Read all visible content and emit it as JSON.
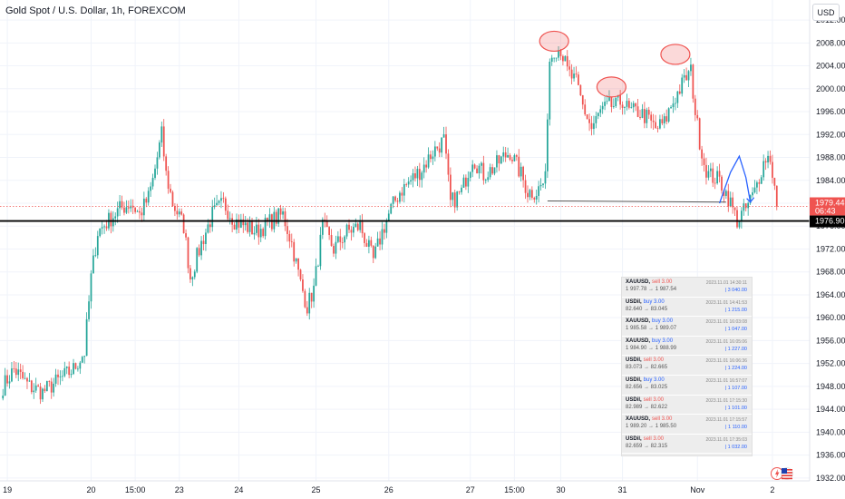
{
  "header": {
    "symbol_title": "Gold Spot / U.S. Dollar, 1h, FOREXCOM",
    "currency": "USD"
  },
  "chart_data": {
    "type": "candlestick",
    "title": "Gold Spot / U.S. Dollar, 1h, FOREXCOM",
    "ylim": [
      1931.5,
      2015.5
    ],
    "y_ticks": [
      "2012.00",
      "2008.00",
      "2004.00",
      "2000.00",
      "1996.00",
      "1992.00",
      "1988.00",
      "1984.00",
      "1980.00",
      "1976.00",
      "1972.00",
      "1968.00",
      "1964.00",
      "1960.00",
      "1956.00",
      "1952.00",
      "1948.00",
      "1944.00",
      "1940.00",
      "1936.00",
      "1932.00"
    ],
    "y_tick_values": [
      2012,
      2008,
      2004,
      2000,
      1996,
      1992,
      1988,
      1984,
      1980,
      1976,
      1972,
      1968,
      1964,
      1960,
      1956,
      1952,
      1948,
      1944,
      1940,
      1936,
      1932
    ],
    "x_ticks": [
      {
        "label": "19",
        "bar": 2
      },
      {
        "label": "20",
        "bar": 40
      },
      {
        "label": "15:00",
        "bar": 60
      },
      {
        "label": "23",
        "bar": 80
      },
      {
        "label": "24",
        "bar": 107
      },
      {
        "label": "25",
        "bar": 142
      },
      {
        "label": "26",
        "bar": 175
      },
      {
        "label": "27",
        "bar": 212
      },
      {
        "label": "15:00",
        "bar": 232
      },
      {
        "label": "30",
        "bar": 253
      },
      {
        "label": "31",
        "bar": 281
      },
      {
        "label": "Nov",
        "bar": 315
      },
      {
        "label": "2",
        "bar": 349
      }
    ],
    "bar_count": 352,
    "anchors": [
      [
        0,
        1948
      ],
      [
        5,
        1951
      ],
      [
        12,
        1948
      ],
      [
        18,
        1947
      ],
      [
        25,
        1949
      ],
      [
        32,
        1951
      ],
      [
        37,
        1954
      ],
      [
        40,
        1967
      ],
      [
        43,
        1975
      ],
      [
        48,
        1977
      ],
      [
        53,
        1979
      ],
      [
        58,
        1980
      ],
      [
        62,
        1978
      ],
      [
        66,
        1981
      ],
      [
        68,
        1984
      ],
      [
        70,
        1988
      ],
      [
        72,
        1992
      ],
      [
        74,
        1985
      ],
      [
        77,
        1980
      ],
      [
        82,
        1976
      ],
      [
        85,
        1967
      ],
      [
        90,
        1973
      ],
      [
        95,
        1978
      ],
      [
        100,
        1980
      ],
      [
        105,
        1977
      ],
      [
        110,
        1976
      ],
      [
        115,
        1975
      ],
      [
        122,
        1977
      ],
      [
        127,
        1978
      ],
      [
        131,
        1973
      ],
      [
        135,
        1966
      ],
      [
        138,
        1962
      ],
      [
        141,
        1965
      ],
      [
        145,
        1976
      ],
      [
        150,
        1972
      ],
      [
        156,
        1975
      ],
      [
        162,
        1976
      ],
      [
        168,
        1970
      ],
      [
        172,
        1975
      ],
      [
        176,
        1979
      ],
      [
        180,
        1982
      ],
      [
        185,
        1984
      ],
      [
        190,
        1986
      ],
      [
        195,
        1989
      ],
      [
        200,
        1991
      ],
      [
        203,
        1980
      ],
      [
        208,
        1982
      ],
      [
        213,
        1988
      ],
      [
        218,
        1985
      ],
      [
        222,
        1986
      ],
      [
        227,
        1988
      ],
      [
        230,
        1989
      ],
      [
        235,
        1985
      ],
      [
        238,
        1982
      ],
      [
        242,
        1982
      ],
      [
        246,
        1984
      ],
      [
        247,
        1996
      ],
      [
        248,
        2005
      ],
      [
        250,
        2007
      ],
      [
        253,
        2007
      ],
      [
        256,
        2003
      ],
      [
        260,
        2001
      ],
      [
        263,
        1997
      ],
      [
        267,
        1993
      ],
      [
        271,
        1996
      ],
      [
        275,
        1997
      ],
      [
        278,
        1997
      ],
      [
        281,
        1998
      ],
      [
        284,
        1996
      ],
      [
        288,
        1996
      ],
      [
        292,
        1995
      ],
      [
        296,
        1993
      ],
      [
        300,
        1994
      ],
      [
        303,
        1997
      ],
      [
        307,
        2000
      ],
      [
        310,
        2002
      ],
      [
        312,
        2003
      ],
      [
        314,
        1996
      ],
      [
        316,
        1991
      ],
      [
        318,
        1987
      ],
      [
        320,
        1985
      ],
      [
        325,
        1984
      ],
      [
        329,
        1981
      ],
      [
        333,
        1977
      ],
      [
        337,
        1979
      ],
      [
        341,
        1982
      ],
      [
        344,
        1986
      ],
      [
        346,
        1988
      ],
      [
        348,
        1988
      ],
      [
        351,
        1980
      ]
    ],
    "current_price": "1979.44",
    "countdown": "06:43",
    "support_level": 1976.9,
    "support_label": "1976.90",
    "neckline": {
      "from_bar": 247,
      "to_bar": 328,
      "price": 1980.4
    },
    "highlight_circles": [
      {
        "bar": 250,
        "price": 2008.3
      },
      {
        "bar": 276,
        "price": 2000.3
      },
      {
        "bar": 305,
        "price": 2006.0
      }
    ],
    "arrow_path": [
      [
        325,
        1980.0
      ],
      [
        330,
        1985.4
      ],
      [
        334,
        1988.2
      ],
      [
        337,
        1984.5
      ],
      [
        339,
        1980.2
      ]
    ],
    "colors": {
      "up": "#26a69a",
      "down": "#ef5350",
      "support": "#000000",
      "arrow": "#2962ff",
      "circle": "#ef5350",
      "neckline": "#555555"
    }
  },
  "trades": [
    {
      "symbol": "XAUUSD,",
      "side": "sell",
      "qty": "3.00",
      "from": "1 997.78",
      "to": "1 987.54",
      "time": "2023.11.01 14:30:11",
      "amount": "3 040.00"
    },
    {
      "symbol": "USDil,",
      "side": "buy",
      "qty": "3.00",
      "from": "82.640",
      "to": "83.045",
      "time": "2023.11.01 14:41:53",
      "amount": "1 215.00"
    },
    {
      "symbol": "XAUUSD,",
      "side": "buy",
      "qty": "3.00",
      "from": "1 985.58",
      "to": "1 989.07",
      "time": "2023.11.01 16:03:08",
      "amount": "1 047.00"
    },
    {
      "symbol": "XAUUSD,",
      "side": "buy",
      "qty": "3.00",
      "from": "1 984.90",
      "to": "1 988.99",
      "time": "2023.11.01 16:05:06",
      "amount": "1 227.00"
    },
    {
      "symbol": "USDil,",
      "side": "sell",
      "qty": "3.00",
      "from": "83.073",
      "to": "82.665",
      "time": "2023.11.01 16:06:36",
      "amount": "1 224.00"
    },
    {
      "symbol": "USDil,",
      "side": "buy",
      "qty": "3.00",
      "from": "82.656",
      "to": "83.025",
      "time": "2023.11.01 16:57:07",
      "amount": "1 107.00"
    },
    {
      "symbol": "USDil,",
      "side": "sell",
      "qty": "3.00",
      "from": "82.989",
      "to": "82.622",
      "time": "2023.11.01 17:15:30",
      "amount": "1 101.00"
    },
    {
      "symbol": "XAUUSD,",
      "side": "sell",
      "qty": "3.00",
      "from": "1 989.20",
      "to": "1 985.50",
      "time": "2023.11.01 17:15:57",
      "amount": "1 110.00"
    },
    {
      "symbol": "USDil,",
      "side": "sell",
      "qty": "3.00",
      "from": "82.659",
      "to": "82.315",
      "time": "2023.11.01 17:35:03",
      "amount": "1 032.00"
    }
  ]
}
